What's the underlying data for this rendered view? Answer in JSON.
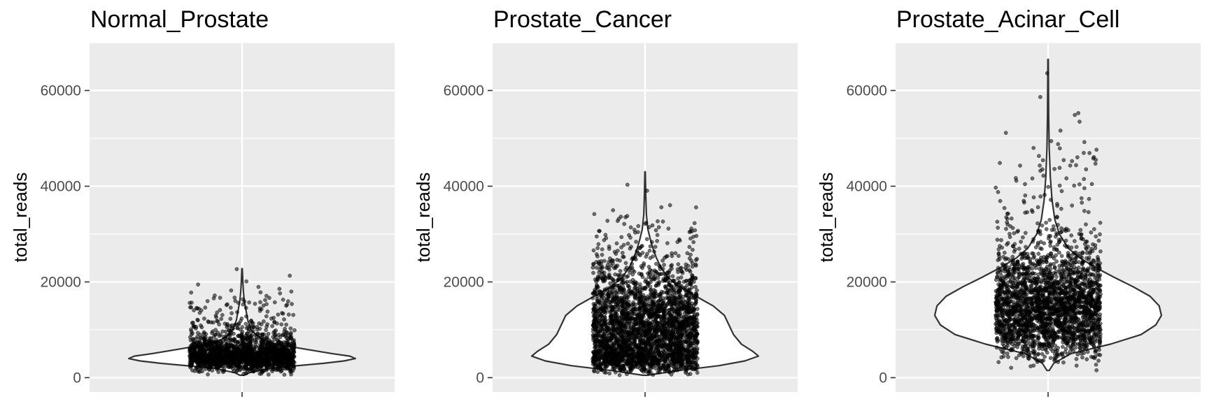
{
  "colors": {
    "panel_background": "#EBEBEB",
    "gridline": "#FFFFFF",
    "violin_fill": "#FFFFFF",
    "violin_stroke": "#333333",
    "points": "#000000"
  },
  "chart_data": [
    {
      "type": "violin",
      "title": "Normal_Prostate",
      "xlabel": "",
      "ylabel": "total_reads",
      "ylim": [
        -3000,
        70000
      ],
      "yticks": [
        0,
        20000,
        40000,
        60000
      ],
      "yticklabels": [
        "0",
        "20000",
        "40000",
        "60000"
      ],
      "grid": true,
      "legend": "none",
      "jitter_points": true,
      "summary": {
        "min": 500,
        "max": 22800,
        "bulk_range": [
          2000,
          8000
        ],
        "mode": 4000,
        "n_points_approx": 2000
      },
      "violin_profile": [
        {
          "y": 500,
          "half_width": 0.02
        },
        {
          "y": 1000,
          "half_width": 0.06
        },
        {
          "y": 2000,
          "half_width": 0.25
        },
        {
          "y": 3000,
          "half_width": 0.72
        },
        {
          "y": 3500,
          "half_width": 0.9
        },
        {
          "y": 4000,
          "half_width": 1.0
        },
        {
          "y": 4500,
          "half_width": 0.95
        },
        {
          "y": 5000,
          "half_width": 0.8
        },
        {
          "y": 6000,
          "half_width": 0.55
        },
        {
          "y": 7000,
          "half_width": 0.3
        },
        {
          "y": 8000,
          "half_width": 0.18
        },
        {
          "y": 9000,
          "half_width": 0.12
        },
        {
          "y": 10000,
          "half_width": 0.08
        },
        {
          "y": 12000,
          "half_width": 0.05
        },
        {
          "y": 14000,
          "half_width": 0.035
        },
        {
          "y": 16000,
          "half_width": 0.02
        },
        {
          "y": 18000,
          "half_width": 0.012
        },
        {
          "y": 20000,
          "half_width": 0.007
        },
        {
          "y": 22800,
          "half_width": 0.002
        }
      ]
    },
    {
      "type": "violin",
      "title": "Prostate_Cancer",
      "xlabel": "",
      "ylabel": "total_reads",
      "ylim": [
        -3000,
        70000
      ],
      "yticks": [
        0,
        20000,
        40000,
        60000
      ],
      "yticklabels": [
        "0",
        "20000",
        "40000",
        "60000"
      ],
      "grid": true,
      "legend": "none",
      "jitter_points": true,
      "summary": {
        "min": 500,
        "max": 43000,
        "bulk_range": [
          2000,
          27000
        ],
        "mode": 4500,
        "n_points_approx": 3000
      },
      "violin_profile": [
        {
          "y": 500,
          "half_width": 0.02
        },
        {
          "y": 1500,
          "half_width": 0.3
        },
        {
          "y": 2500,
          "half_width": 0.65
        },
        {
          "y": 3500,
          "half_width": 0.88
        },
        {
          "y": 4500,
          "half_width": 1.0
        },
        {
          "y": 5500,
          "half_width": 0.95
        },
        {
          "y": 7000,
          "half_width": 0.85
        },
        {
          "y": 9000,
          "half_width": 0.78
        },
        {
          "y": 11000,
          "half_width": 0.74
        },
        {
          "y": 13000,
          "half_width": 0.7
        },
        {
          "y": 15000,
          "half_width": 0.6
        },
        {
          "y": 17000,
          "half_width": 0.45
        },
        {
          "y": 19000,
          "half_width": 0.3
        },
        {
          "y": 21000,
          "half_width": 0.2
        },
        {
          "y": 23000,
          "half_width": 0.14
        },
        {
          "y": 25000,
          "half_width": 0.1
        },
        {
          "y": 27000,
          "half_width": 0.07
        },
        {
          "y": 29000,
          "half_width": 0.045
        },
        {
          "y": 31000,
          "half_width": 0.025
        },
        {
          "y": 34000,
          "half_width": 0.012
        },
        {
          "y": 38000,
          "half_width": 0.006
        },
        {
          "y": 43000,
          "half_width": 0.002
        }
      ]
    },
    {
      "type": "violin",
      "title": "Prostate_Acinar_Cell",
      "xlabel": "",
      "ylabel": "total_reads",
      "ylim": [
        -3000,
        70000
      ],
      "yticks": [
        0,
        20000,
        40000,
        60000
      ],
      "yticklabels": [
        "0",
        "20000",
        "40000",
        "60000"
      ],
      "grid": true,
      "legend": "none",
      "jitter_points": true,
      "summary": {
        "min": 1500,
        "max": 66500,
        "bulk_range": [
          5000,
          35000
        ],
        "mode": 14000,
        "n_points_approx": 2500
      },
      "violin_profile": [
        {
          "y": 1500,
          "half_width": 0.01
        },
        {
          "y": 3000,
          "half_width": 0.05
        },
        {
          "y": 5000,
          "half_width": 0.2
        },
        {
          "y": 7000,
          "half_width": 0.55
        },
        {
          "y": 9000,
          "half_width": 0.82
        },
        {
          "y": 11000,
          "half_width": 0.95
        },
        {
          "y": 13000,
          "half_width": 1.0
        },
        {
          "y": 15000,
          "half_width": 0.98
        },
        {
          "y": 17000,
          "half_width": 0.9
        },
        {
          "y": 19000,
          "half_width": 0.75
        },
        {
          "y": 21000,
          "half_width": 0.58
        },
        {
          "y": 23000,
          "half_width": 0.42
        },
        {
          "y": 25000,
          "half_width": 0.28
        },
        {
          "y": 27000,
          "half_width": 0.18
        },
        {
          "y": 30000,
          "half_width": 0.1
        },
        {
          "y": 33000,
          "half_width": 0.06
        },
        {
          "y": 37000,
          "half_width": 0.035
        },
        {
          "y": 42000,
          "half_width": 0.02
        },
        {
          "y": 48000,
          "half_width": 0.01
        },
        {
          "y": 55000,
          "half_width": 0.005
        },
        {
          "y": 66500,
          "half_width": 0.002
        }
      ]
    }
  ]
}
